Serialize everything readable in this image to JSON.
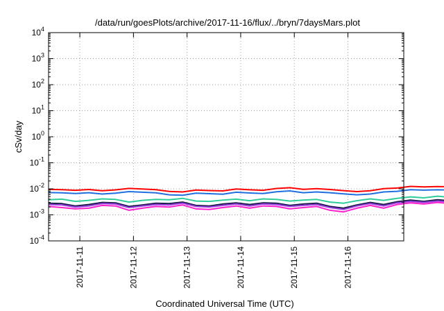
{
  "chart_data": {
    "type": "line",
    "title": "/data/run/goesPlots/archive/2017-11-16/flux/../bryn/7daysMars.plot",
    "xlabel": "Coordinated Universal Time (UTC)",
    "ylabel": "cSv/day",
    "x_type": "time",
    "xlim": [
      "2017-11-10T10:00",
      "2017-11-17T01:00"
    ],
    "x_ticks": [
      "2017-11-11",
      "2017-11-12",
      "2017-11-13",
      "2017-11-14",
      "2017-11-15",
      "2017-11-16"
    ],
    "y_scale": "log",
    "ylim": [
      0.0001,
      10000
    ],
    "y_ticks": [
      {
        "base": "10",
        "exp": "4"
      },
      {
        "base": "10",
        "exp": "3"
      },
      {
        "base": "10",
        "exp": "2"
      },
      {
        "base": "10",
        "exp": "1"
      },
      {
        "base": "10",
        "exp": "0"
      },
      {
        "base": "10",
        "exp": "-1"
      },
      {
        "base": "10",
        "exp": "-2"
      },
      {
        "base": "10",
        "exp": "-3"
      },
      {
        "base": "10",
        "exp": "-4"
      }
    ],
    "grid": true,
    "legend": "none",
    "sample_interval_hours": 6,
    "series": [
      {
        "color": "#ff0000",
        "values": [
          0.0095,
          0.0093,
          0.0088,
          0.0094,
          0.0084,
          0.0091,
          0.0104,
          0.0098,
          0.0093,
          0.0079,
          0.0076,
          0.009,
          0.0086,
          0.0083,
          0.0098,
          0.0092,
          0.0088,
          0.0103,
          0.011,
          0.0095,
          0.0101,
          0.0094,
          0.0085,
          0.0078,
          0.0084,
          0.0101,
          0.0107,
          0.0124,
          0.0118,
          0.0122,
          0.012,
          0.0112,
          0.0118,
          0.0107,
          0.0113,
          0.0094,
          0.009,
          0.009,
          0.0117,
          0.0129,
          0.013,
          0.0118,
          0.0098,
          0.0102,
          0.0093,
          0.0093,
          0.01,
          0.0101,
          0.0103,
          0.0108,
          0.0106,
          0.0085,
          0.0093,
          0.0089,
          0.0076,
          0.0082,
          0.0099,
          0.0102,
          0.0107,
          0.0087,
          0.0098,
          0.0096,
          0.009,
          0.0102,
          0.0109,
          0.0106,
          0.01,
          0.0092,
          0.0084,
          0.0083,
          0.0074,
          0.0078,
          0.0071,
          0.0085,
          0.009,
          0.0085,
          0.0083,
          0.0098,
          0.0094,
          0.0093,
          0.01,
          0.0093,
          0.0095,
          0.0103,
          0.0105,
          0.0096,
          0.0099,
          0.008,
          0.0069,
          0.0075,
          0.0094,
          0.0101,
          0.0114,
          0.0104,
          0.0098,
          0.0112,
          0.0102,
          0.0109,
          0.0129,
          0.0119,
          0.011,
          0.0108,
          0.0087,
          0.0089,
          0.011
        ]
      },
      {
        "color": "#1f6fe0",
        "values": [
          0.0072,
          0.007,
          0.0066,
          0.0071,
          0.0063,
          0.0068,
          0.0078,
          0.0074,
          0.007,
          0.0059,
          0.0057,
          0.0068,
          0.0065,
          0.0062,
          0.0074,
          0.0069,
          0.0066,
          0.0077,
          0.0083,
          0.0071,
          0.0076,
          0.0071,
          0.0064,
          0.0059,
          0.0063,
          0.0076,
          0.008,
          0.0093,
          0.0089,
          0.0092,
          0.009,
          0.0084,
          0.0089,
          0.008,
          0.0085,
          0.0071,
          0.0068,
          0.0068,
          0.0088,
          0.0097,
          0.0098,
          0.0089,
          0.0074,
          0.0077,
          0.007,
          0.007,
          0.0075,
          0.0076,
          0.0077,
          0.0081,
          0.008,
          0.0064,
          0.007,
          0.0067,
          0.0057,
          0.0062,
          0.0074,
          0.0077,
          0.008,
          0.0065,
          0.0074,
          0.0072,
          0.0068,
          0.0077,
          0.0082,
          0.008,
          0.0075,
          0.0069,
          0.0063,
          0.0062,
          0.0056,
          0.0059,
          0.0053,
          0.0064,
          0.0068,
          0.0064,
          0.0062,
          0.0074,
          0.0071,
          0.007,
          0.0075,
          0.007,
          0.0071,
          0.0077,
          0.0079,
          0.0072,
          0.0074,
          0.006,
          0.0052,
          0.0056,
          0.0071,
          0.0076,
          0.0086,
          0.0078,
          0.0074,
          0.0084,
          0.0077,
          0.0082,
          0.0097,
          0.0089,
          0.0083,
          0.0081,
          0.0065,
          0.0067,
          0.0083
        ]
      },
      {
        "color": "#2ecc9a",
        "values": [
          0.0038,
          0.004,
          0.0033,
          0.0036,
          0.0041,
          0.0039,
          0.0031,
          0.0036,
          0.0039,
          0.0038,
          0.0043,
          0.0034,
          0.0033,
          0.0037,
          0.004,
          0.0035,
          0.0041,
          0.0039,
          0.0034,
          0.0037,
          0.0039,
          0.0031,
          0.0028,
          0.0035,
          0.0041,
          0.0036,
          0.0043,
          0.0049,
          0.0045,
          0.0052,
          0.0047,
          0.004,
          0.0043,
          0.0039,
          0.0037,
          0.0033,
          0.0043,
          0.0046,
          0.005,
          0.0054,
          0.0043,
          0.0038,
          0.0042,
          0.0044,
          0.004,
          0.0035,
          0.004,
          0.0043,
          0.0038,
          0.0041,
          0.0039,
          0.0037,
          0.0033,
          0.0038,
          0.0036,
          0.0041,
          0.0043,
          0.0045,
          0.0039,
          0.0036,
          0.0043,
          0.0038,
          0.0041,
          0.0045,
          0.0042,
          0.004,
          0.0034,
          0.0032,
          0.0038,
          0.0036,
          0.003,
          0.0035,
          0.0033,
          0.0039,
          0.0037,
          0.0035,
          0.0031,
          0.0036,
          0.0041,
          0.0038,
          0.0037,
          0.0034,
          0.0039,
          0.0044,
          0.0043,
          0.004,
          0.0038,
          0.0034,
          0.0036,
          0.0039,
          0.0041,
          0.0039,
          0.0037,
          0.0043,
          0.0046,
          0.004,
          0.0043,
          0.0044,
          0.0041,
          0.0038,
          0.0043,
          0.004,
          0.0039,
          0.0045,
          0.0044
        ]
      },
      {
        "color": "#1a1a4a",
        "values": [
          0.0028,
          0.0027,
          0.0022,
          0.0025,
          0.003,
          0.0029,
          0.0021,
          0.0024,
          0.0028,
          0.0027,
          0.0031,
          0.0023,
          0.0022,
          0.0026,
          0.0029,
          0.0025,
          0.0029,
          0.0028,
          0.0023,
          0.0026,
          0.0028,
          0.0021,
          0.0018,
          0.0024,
          0.003,
          0.0025,
          0.0032,
          0.0037,
          0.0033,
          0.0038,
          0.0035,
          0.0029,
          0.0031,
          0.0028,
          0.0026,
          0.0023,
          0.0031,
          0.0034,
          0.0037,
          0.0041,
          0.0031,
          0.0027,
          0.003,
          0.0032,
          0.0029,
          0.0024,
          0.0029,
          0.0031,
          0.0027,
          0.003,
          0.0028,
          0.0026,
          0.0023,
          0.0027,
          0.0025,
          0.003,
          0.0031,
          0.0033,
          0.0028,
          0.0025,
          0.0031,
          0.0027,
          0.003,
          0.0033,
          0.003,
          0.0029,
          0.0023,
          0.0022,
          0.0027,
          0.0025,
          0.002,
          0.0024,
          0.0023,
          0.0028,
          0.0026,
          0.0024,
          0.0021,
          0.0025,
          0.003,
          0.0027,
          0.0026,
          0.0023,
          0.0028,
          0.0032,
          0.0031,
          0.0029,
          0.0027,
          0.0023,
          0.0025,
          0.0028,
          0.003,
          0.0028,
          0.0026,
          0.0031,
          0.0034,
          0.0029,
          0.0031,
          0.0032,
          0.003,
          0.0027,
          0.0031,
          0.0029,
          0.0028,
          0.0033,
          0.0032
        ]
      },
      {
        "color": "#9b3de0",
        "values": [
          0.0025,
          0.0024,
          0.002,
          0.0022,
          0.0027,
          0.0026,
          0.0019,
          0.0022,
          0.0025,
          0.0024,
          0.0028,
          0.0021,
          0.002,
          0.0023,
          0.0026,
          0.0022,
          0.0026,
          0.0025,
          0.0021,
          0.0023,
          0.0025,
          0.0019,
          0.0016,
          0.0022,
          0.0027,
          0.0022,
          0.0029,
          0.0033,
          0.003,
          0.0034,
          0.0031,
          0.0026,
          0.0028,
          0.0025,
          0.0023,
          0.0021,
          0.0028,
          0.003,
          0.0033,
          0.0037,
          0.0028,
          0.0024,
          0.0027,
          0.0029,
          0.0026,
          0.0022,
          0.0026,
          0.0028,
          0.0024,
          0.0027,
          0.0025,
          0.0023,
          0.0021,
          0.0024,
          0.0022,
          0.0027,
          0.0028,
          0.003,
          0.0025,
          0.0022,
          0.0028,
          0.0024,
          0.0027,
          0.003,
          0.0027,
          0.0026,
          0.0021,
          0.002,
          0.0024,
          0.0022,
          0.0018,
          0.0022,
          0.0021,
          0.0025,
          0.0023,
          0.0022,
          0.0019,
          0.0022,
          0.0027,
          0.0024,
          0.0023,
          0.0021,
          0.0025,
          0.0029,
          0.0028,
          0.0026,
          0.0024,
          0.0021,
          0.0022,
          0.0025,
          0.0027,
          0.0025,
          0.0023,
          0.0028,
          0.003,
          0.0026,
          0.0028,
          0.0029,
          0.0027,
          0.0024,
          0.0028,
          0.0026,
          0.0025,
          0.003,
          0.0029
        ]
      },
      {
        "color": "#ff22cc",
        "values": [
          0.0021,
          0.0019,
          0.0017,
          0.0018,
          0.0023,
          0.0022,
          0.0015,
          0.0018,
          0.0021,
          0.002,
          0.0024,
          0.0017,
          0.0016,
          0.0019,
          0.0022,
          0.0018,
          0.0022,
          0.0021,
          0.0017,
          0.0019,
          0.0021,
          0.0015,
          0.0013,
          0.0018,
          0.0023,
          0.0018,
          0.0025,
          0.0029,
          0.0026,
          0.003,
          0.0027,
          0.0022,
          0.0024,
          0.0021,
          0.0019,
          0.0017,
          0.0024,
          0.0026,
          0.0029,
          0.0032,
          0.0024,
          0.002,
          0.0023,
          0.0025,
          0.0022,
          0.0018,
          0.0022,
          0.0024,
          0.002,
          0.0023,
          0.0021,
          0.0019,
          0.0017,
          0.002,
          0.0018,
          0.0023,
          0.0024,
          0.0026,
          0.0021,
          0.0018,
          0.0024,
          0.002,
          0.0023,
          0.0026,
          0.0023,
          0.0022,
          0.0017,
          0.0016,
          0.002,
          0.0018,
          0.0014,
          0.0018,
          0.0017,
          0.0021,
          0.0019,
          0.0018,
          0.0015,
          0.0018,
          0.0023,
          0.002,
          0.0019,
          0.0017,
          0.0021,
          0.0025,
          0.0024,
          0.0022,
          0.002,
          0.0017,
          0.0018,
          0.0021,
          0.0023,
          0.0021,
          0.0019,
          0.0024,
          0.0026,
          0.0022,
          0.0024,
          0.0025,
          0.0023,
          0.002,
          0.0024,
          0.0022,
          0.0021,
          0.0026,
          0.0025
        ]
      }
    ]
  }
}
